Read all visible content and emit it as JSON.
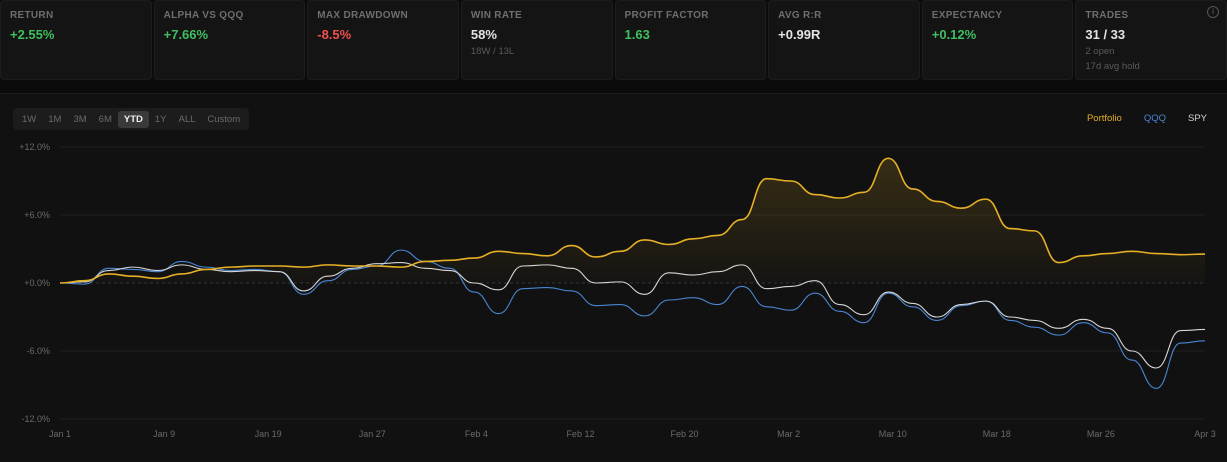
{
  "stats": [
    {
      "label": "RETURN",
      "value": "+2.55%",
      "tone": "pos"
    },
    {
      "label": "ALPHA VS QQQ",
      "value": "+7.66%",
      "tone": "pos"
    },
    {
      "label": "MAX DRAWDOWN",
      "value": "-8.5%",
      "tone": "neg"
    },
    {
      "label": "WIN RATE",
      "value": "58%",
      "tone": "neu",
      "sub": "18W / 13L"
    },
    {
      "label": "PROFIT FACTOR",
      "value": "1.63",
      "tone": "pos"
    },
    {
      "label": "AVG R:R",
      "value": "+0.99R",
      "tone": "neu"
    },
    {
      "label": "EXPECTANCY",
      "value": "+0.12%",
      "tone": "pos"
    },
    {
      "label": "TRADES",
      "value": "31 / 33",
      "tone": "neu",
      "sub": "2 open",
      "sub2": "17d avg hold"
    }
  ],
  "info_icon": "i",
  "ranges": [
    "1W",
    "1M",
    "3M",
    "6M",
    "YTD",
    "1Y",
    "ALL",
    "Custom"
  ],
  "active_range": "YTD",
  "legend": [
    {
      "name": "Portfolio",
      "color": "#e6b026"
    },
    {
      "name": "QQQ",
      "color": "#4a86d4"
    },
    {
      "name": "SPY",
      "color": "#d6d6d6"
    }
  ],
  "chart_data": {
    "type": "line",
    "x_ticks": [
      "Jan 1",
      "Jan 9",
      "Jan 19",
      "Jan 27",
      "Feb 4",
      "Feb 12",
      "Feb 20",
      "Mar 2",
      "Mar 10",
      "Mar 18",
      "Mar 26",
      "Apr 3"
    ],
    "y_ticks": [
      "+12.0%",
      "+6.0%",
      "+0.0%",
      "-6.0%",
      "-12.0%"
    ],
    "ylim": [
      -12,
      12
    ],
    "grid": true,
    "series": [
      {
        "name": "Portfolio",
        "color": "#e6b026",
        "values": [
          0,
          0.2,
          0.8,
          0.6,
          0.4,
          0.8,
          1.2,
          1.4,
          1.5,
          1.5,
          1.4,
          1.6,
          1.5,
          1.5,
          1.4,
          1.9,
          2.0,
          2.2,
          2.8,
          2.6,
          2.4,
          3.3,
          2.3,
          2.8,
          3.8,
          3.4,
          3.9,
          4.2,
          5.6,
          9.2,
          9.0,
          7.8,
          7.5,
          8.0,
          11.0,
          8.3,
          7.2,
          6.6,
          7.4,
          4.8,
          4.6,
          1.8,
          2.4,
          2.6,
          2.8,
          2.6,
          2.5,
          2.55
        ]
      },
      {
        "name": "QQQ",
        "color": "#4a86d4",
        "values": [
          0,
          -0.1,
          1.3,
          1.2,
          1.0,
          1.9,
          1.4,
          1.1,
          1.2,
          1.0,
          -1.0,
          0.2,
          1.2,
          1.5,
          2.9,
          1.9,
          1.3,
          -0.8,
          -2.7,
          -0.5,
          -0.4,
          -0.7,
          -2.0,
          -1.9,
          -2.9,
          -1.5,
          -1.3,
          -1.9,
          -0.3,
          -2.1,
          -2.4,
          -0.9,
          -2.5,
          -3.5,
          -0.9,
          -2.1,
          -3.3,
          -2.0,
          -1.6,
          -3.3,
          -3.9,
          -4.6,
          -3.5,
          -4.4,
          -6.8,
          -9.3,
          -5.3,
          -5.1
        ]
      },
      {
        "name": "SPY",
        "color": "#d6d6d6",
        "values": [
          0,
          0.1,
          1.1,
          1.4,
          1.1,
          1.6,
          1.2,
          1.0,
          1.1,
          1.0,
          -0.7,
          0.6,
          1.3,
          1.7,
          1.8,
          1.3,
          1.1,
          0.0,
          -0.6,
          1.5,
          1.6,
          1.3,
          0.0,
          0.1,
          -1.0,
          0.9,
          0.7,
          1.0,
          1.6,
          -0.5,
          -0.3,
          0.2,
          -1.9,
          -2.8,
          -0.8,
          -1.8,
          -3.0,
          -1.9,
          -1.6,
          -3.0,
          -3.3,
          -4.0,
          -3.2,
          -4.0,
          -6.0,
          -7.5,
          -4.2,
          -4.1
        ]
      }
    ]
  }
}
